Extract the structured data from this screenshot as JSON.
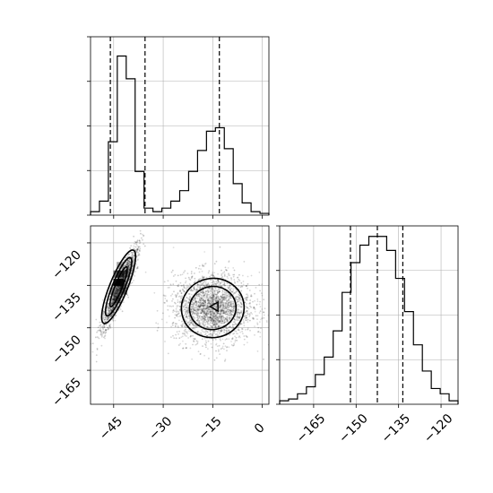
{
  "chart_data": [
    {
      "type": "histogram",
      "panel": "top-left",
      "xlim": [
        -52,
        2
      ],
      "bins": [
        -52,
        -49.3,
        -46.6,
        -43.9,
        -41.2,
        -38.5,
        -35.8,
        -33.1,
        -30.4,
        -27.7,
        -25,
        -22.3,
        -19.6,
        -16.9,
        -14.2,
        -11.5,
        -8.8,
        -6.1,
        -3.4,
        -0.7,
        2
      ],
      "counts": [
        0.02,
        0.08,
        0.42,
        0.91,
        0.78,
        0.25,
        0.04,
        0.02,
        0.04,
        0.08,
        0.14,
        0.25,
        0.37,
        0.48,
        0.5,
        0.38,
        0.18,
        0.07,
        0.02,
        0.01
      ],
      "quantiles": [
        -46,
        -35.5,
        -13
      ],
      "xticks": [
        -45,
        -30,
        -15,
        0
      ],
      "grid": true,
      "xlabel": "",
      "ylabel": ""
    },
    {
      "type": "histogram",
      "panel": "bottom-right",
      "xlim": [
        -177,
        -114
      ],
      "bins": [
        -177,
        -173.85,
        -170.7,
        -167.55,
        -164.4,
        -161.25,
        -158.1,
        -154.95,
        -151.8,
        -148.65,
        -145.5,
        -142.35,
        -139.2,
        -136.05,
        -132.9,
        -129.75,
        -126.6,
        -123.45,
        -120.3,
        -117.15,
        -114
      ],
      "counts": [
        0.02,
        0.03,
        0.06,
        0.1,
        0.17,
        0.27,
        0.42,
        0.64,
        0.81,
        0.91,
        0.96,
        0.96,
        0.88,
        0.72,
        0.53,
        0.34,
        0.19,
        0.09,
        0.06,
        0.02
      ],
      "quantiles": [
        -152,
        -142.5,
        -133.5
      ],
      "xticks": [
        -165,
        -150,
        -135,
        -120
      ],
      "grid": true,
      "xlabel": "",
      "ylabel": ""
    },
    {
      "type": "scatter",
      "panel": "bottom-left",
      "xlim": [
        -52,
        2
      ],
      "ylim": [
        -177,
        -114
      ],
      "clusters": [
        {
          "center": [
            -43,
            -136
          ],
          "spread": [
            2.0,
            6.0
          ],
          "rotation_deg": 60,
          "points": 1700
        },
        {
          "center": [
            -15,
            -143
          ],
          "spread": [
            6.0,
            6.0
          ],
          "rotation_deg": 0,
          "points": 2300
        }
      ],
      "contour_levels": 3,
      "xticks": [
        -45,
        -30,
        -15,
        0
      ],
      "yticks": [
        -120,
        -135,
        -150,
        -165
      ],
      "grid": true,
      "xlabel": "",
      "ylabel": ""
    }
  ]
}
